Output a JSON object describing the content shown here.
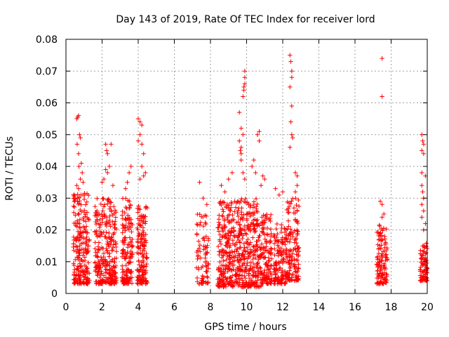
{
  "chart_data": {
    "type": "scatter",
    "title": "Day 143 of 2019, Rate Of TEC Index for receiver lord",
    "xlabel": "GPS time / hours",
    "ylabel": "ROTI / TECUs",
    "xlim": [
      0,
      20
    ],
    "ylim": [
      0,
      0.08
    ],
    "xticks": [
      "0",
      "2",
      "4",
      "6",
      "8",
      "10",
      "12",
      "14",
      "16",
      "18",
      "20"
    ],
    "yticks": [
      "0",
      "0.01",
      "0.02",
      "0.03",
      "0.04",
      "0.05",
      "0.06",
      "0.07",
      "0.08"
    ],
    "grid": true,
    "marker": "+",
    "color": "#ff0000",
    "clusters": [
      {
        "x_range": [
          0.4,
          1.3
        ],
        "y_range": [
          0.003,
          0.032
        ],
        "count": 220
      },
      {
        "x_range": [
          1.6,
          2.8
        ],
        "y_range": [
          0.003,
          0.03
        ],
        "count": 280
      },
      {
        "x_range": [
          3.1,
          3.7
        ],
        "y_range": [
          0.003,
          0.03
        ],
        "count": 150
      },
      {
        "x_range": [
          3.9,
          4.5
        ],
        "y_range": [
          0.003,
          0.028
        ],
        "count": 150
      },
      {
        "x_range": [
          7.2,
          7.9
        ],
        "y_range": [
          0.003,
          0.025
        ],
        "count": 80
      },
      {
        "x_range": [
          8.4,
          9.4
        ],
        "y_range": [
          0.002,
          0.029
        ],
        "count": 230
      },
      {
        "x_range": [
          9.4,
          10.8
        ],
        "y_range": [
          0.002,
          0.03
        ],
        "count": 320
      },
      {
        "x_range": [
          10.8,
          11.4
        ],
        "y_range": [
          0.003,
          0.025
        ],
        "count": 120
      },
      {
        "x_range": [
          11.5,
          12.2
        ],
        "y_range": [
          0.003,
          0.022
        ],
        "count": 130
      },
      {
        "x_range": [
          12.2,
          12.9
        ],
        "y_range": [
          0.004,
          0.03
        ],
        "count": 150
      },
      {
        "x_range": [
          17.2,
          17.8
        ],
        "y_range": [
          0.003,
          0.022
        ],
        "count": 120
      },
      {
        "x_range": [
          19.6,
          20.0
        ],
        "y_range": [
          0.004,
          0.016
        ],
        "count": 80
      }
    ],
    "points": [
      [
        0.6,
        0.055
      ],
      [
        0.65,
        0.0555
      ],
      [
        0.7,
        0.056
      ],
      [
        0.62,
        0.047
      ],
      [
        0.7,
        0.044
      ],
      [
        0.75,
        0.05
      ],
      [
        0.8,
        0.049
      ],
      [
        0.72,
        0.04
      ],
      [
        0.85,
        0.041
      ],
      [
        0.9,
        0.038
      ],
      [
        0.8,
        0.036
      ],
      [
        0.6,
        0.034
      ],
      [
        0.95,
        0.035
      ],
      [
        0.7,
        0.033
      ],
      [
        2.2,
        0.047
      ],
      [
        2.25,
        0.045
      ],
      [
        2.3,
        0.044
      ],
      [
        2.5,
        0.047
      ],
      [
        2.2,
        0.039
      ],
      [
        2.3,
        0.038
      ],
      [
        2.1,
        0.036
      ],
      [
        2.4,
        0.04
      ],
      [
        2.6,
        0.034
      ],
      [
        2.0,
        0.035
      ],
      [
        3.4,
        0.035
      ],
      [
        3.5,
        0.038
      ],
      [
        3.6,
        0.04
      ],
      [
        3.3,
        0.033
      ],
      [
        4.0,
        0.055
      ],
      [
        4.1,
        0.054
      ],
      [
        4.2,
        0.053
      ],
      [
        4.1,
        0.05
      ],
      [
        4.0,
        0.048
      ],
      [
        4.2,
        0.047
      ],
      [
        4.3,
        0.044
      ],
      [
        4.2,
        0.04
      ],
      [
        4.3,
        0.037
      ],
      [
        4.1,
        0.036
      ],
      [
        4.4,
        0.038
      ],
      [
        7.4,
        0.035
      ],
      [
        7.6,
        0.03
      ],
      [
        7.8,
        0.028
      ],
      [
        8.6,
        0.034
      ],
      [
        8.8,
        0.032
      ],
      [
        9.0,
        0.036
      ],
      [
        9.2,
        0.038
      ],
      [
        9.6,
        0.057
      ],
      [
        9.7,
        0.052
      ],
      [
        9.6,
        0.048
      ],
      [
        9.7,
        0.046
      ],
      [
        9.65,
        0.045
      ],
      [
        9.7,
        0.044
      ],
      [
        9.8,
        0.062
      ],
      [
        9.85,
        0.065
      ],
      [
        9.9,
        0.066
      ],
      [
        9.85,
        0.064
      ],
      [
        9.9,
        0.068
      ],
      [
        9.9,
        0.07
      ],
      [
        9.8,
        0.05
      ],
      [
        9.8,
        0.038
      ],
      [
        9.9,
        0.036
      ],
      [
        9.7,
        0.042
      ],
      [
        10.3,
        0.04
      ],
      [
        10.4,
        0.042
      ],
      [
        10.5,
        0.038
      ],
      [
        10.6,
        0.05
      ],
      [
        10.7,
        0.051
      ],
      [
        10.7,
        0.048
      ],
      [
        10.8,
        0.034
      ],
      [
        10.9,
        0.037
      ],
      [
        11.0,
        0.036
      ],
      [
        11.6,
        0.033
      ],
      [
        11.8,
        0.031
      ],
      [
        12.0,
        0.032
      ],
      [
        12.4,
        0.075
      ],
      [
        12.45,
        0.073
      ],
      [
        12.5,
        0.07
      ],
      [
        12.5,
        0.068
      ],
      [
        12.4,
        0.065
      ],
      [
        12.5,
        0.059
      ],
      [
        12.45,
        0.054
      ],
      [
        12.5,
        0.05
      ],
      [
        12.55,
        0.049
      ],
      [
        12.4,
        0.046
      ],
      [
        12.7,
        0.038
      ],
      [
        12.8,
        0.037
      ],
      [
        12.8,
        0.034
      ],
      [
        12.7,
        0.032
      ],
      [
        17.5,
        0.074
      ],
      [
        17.5,
        0.062
      ],
      [
        17.4,
        0.029
      ],
      [
        17.5,
        0.028
      ],
      [
        17.6,
        0.025
      ],
      [
        17.5,
        0.024
      ],
      [
        19.7,
        0.05
      ],
      [
        19.75,
        0.048
      ],
      [
        19.8,
        0.047
      ],
      [
        19.7,
        0.045
      ],
      [
        19.8,
        0.044
      ],
      [
        19.7,
        0.038
      ],
      [
        19.9,
        0.037
      ],
      [
        19.7,
        0.034
      ],
      [
        19.75,
        0.032
      ],
      [
        19.8,
        0.03
      ],
      [
        19.7,
        0.028
      ],
      [
        19.8,
        0.026
      ],
      [
        19.7,
        0.024
      ],
      [
        19.9,
        0.022
      ],
      [
        19.8,
        0.02
      ]
    ]
  }
}
